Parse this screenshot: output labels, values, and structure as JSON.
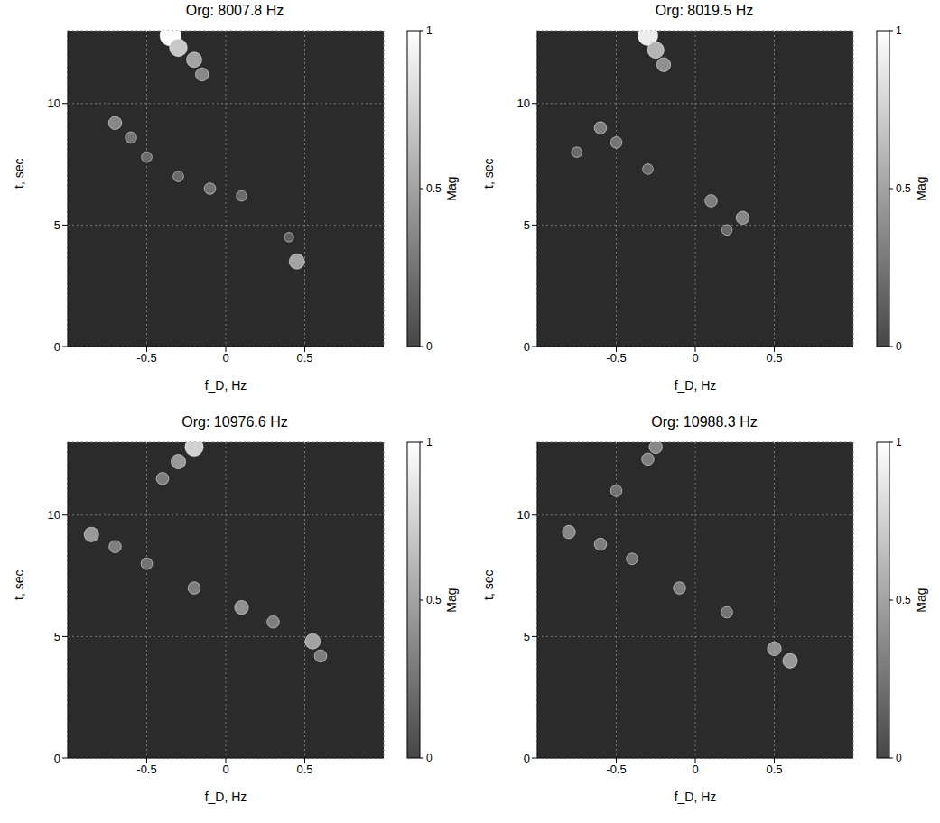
{
  "chart_data": [
    {
      "type": "scatter",
      "title": "Org: 8007.8 Hz",
      "x_label": "f_D, Hz",
      "y_label": "t, sec",
      "mag_label": "Mag",
      "xlim": [
        -1,
        1
      ],
      "xticks": [
        -0.5,
        0,
        0.5
      ],
      "ylim": [
        0,
        13
      ],
      "yticks": [
        0,
        5,
        10
      ],
      "grid": true,
      "marker": "circle",
      "mag_range": [
        0,
        1
      ],
      "mag_ticks": [
        0,
        0.5,
        1
      ],
      "x": [
        -0.35,
        -0.3,
        -0.2,
        -0.15,
        -0.7,
        -0.6,
        -0.5,
        -0.3,
        -0.1,
        0.1,
        0.45,
        0.4
      ],
      "y": [
        12.8,
        12.3,
        11.8,
        11.2,
        9.2,
        8.6,
        7.8,
        7.0,
        6.5,
        6.2,
        3.5,
        4.5
      ],
      "mag": [
        1.0,
        0.7,
        0.5,
        0.35,
        0.35,
        0.25,
        0.2,
        0.2,
        0.25,
        0.2,
        0.5,
        0.15
      ]
    },
    {
      "type": "scatter",
      "title": "Org: 8019.5 Hz",
      "x_label": "f_D, Hz",
      "y_label": "t, sec",
      "mag_label": "Mag",
      "xlim": [
        -1,
        1
      ],
      "xticks": [
        -0.5,
        0,
        0.5
      ],
      "ylim": [
        0,
        13
      ],
      "yticks": [
        0,
        5,
        10
      ],
      "grid": true,
      "marker": "circle",
      "mag_range": [
        0,
        1
      ],
      "mag_ticks": [
        0,
        0.5,
        1
      ],
      "x": [
        -0.3,
        -0.25,
        -0.2,
        -0.6,
        -0.5,
        -0.75,
        -0.3,
        0.1,
        0.3,
        0.2
      ],
      "y": [
        12.8,
        12.2,
        11.6,
        9.0,
        8.4,
        8.0,
        7.3,
        6.0,
        5.3,
        4.8
      ],
      "mag": [
        0.9,
        0.6,
        0.4,
        0.3,
        0.25,
        0.2,
        0.2,
        0.3,
        0.35,
        0.2
      ]
    },
    {
      "type": "scatter",
      "title": "Org: 10976.6 Hz",
      "x_label": "f_D, Hz",
      "y_label": "t, sec",
      "mag_label": "Mag",
      "xlim": [
        -1,
        1
      ],
      "xticks": [
        -0.5,
        0,
        0.5
      ],
      "ylim": [
        0,
        13
      ],
      "yticks": [
        0,
        5,
        10
      ],
      "grid": true,
      "marker": "circle",
      "mag_range": [
        0,
        1
      ],
      "mag_ticks": [
        0,
        0.5,
        1
      ],
      "x": [
        -0.2,
        -0.3,
        -0.4,
        -0.85,
        -0.7,
        -0.5,
        -0.2,
        0.1,
        0.3,
        0.55,
        0.6
      ],
      "y": [
        12.8,
        12.2,
        11.5,
        9.2,
        8.7,
        8.0,
        7.0,
        6.2,
        5.6,
        4.8,
        4.2
      ],
      "mag": [
        0.75,
        0.45,
        0.3,
        0.45,
        0.3,
        0.25,
        0.3,
        0.4,
        0.3,
        0.5,
        0.3
      ]
    },
    {
      "type": "scatter",
      "title": "Org: 10988.3 Hz",
      "x_label": "f_D, Hz",
      "y_label": "t, sec",
      "mag_label": "Mag",
      "xlim": [
        -1,
        1
      ],
      "xticks": [
        -0.5,
        0,
        0.5
      ],
      "ylim": [
        0,
        13
      ],
      "yticks": [
        0,
        5,
        10
      ],
      "grid": true,
      "marker": "circle",
      "mag_range": [
        0,
        1
      ],
      "mag_ticks": [
        0,
        0.5,
        1
      ],
      "x": [
        -0.25,
        -0.3,
        -0.5,
        -0.8,
        -0.6,
        -0.4,
        -0.1,
        0.2,
        0.5,
        0.6
      ],
      "y": [
        12.8,
        12.3,
        11.0,
        9.3,
        8.8,
        8.2,
        7.0,
        6.0,
        4.5,
        4.0
      ],
      "mag": [
        0.35,
        0.3,
        0.25,
        0.35,
        0.3,
        0.25,
        0.3,
        0.25,
        0.4,
        0.45
      ]
    }
  ]
}
